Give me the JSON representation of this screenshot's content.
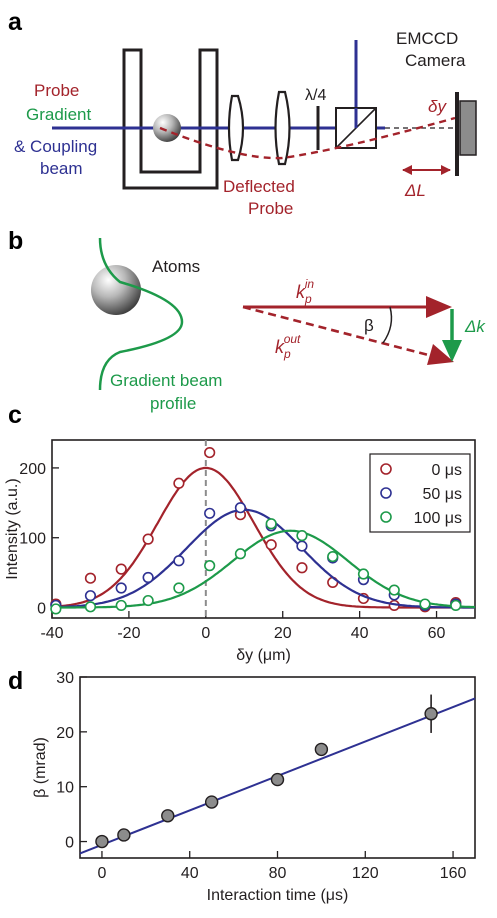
{
  "panels": {
    "a": {
      "letter": "a",
      "probe_label": "Probe",
      "gradient_label": "Gradient",
      "coupling_label": "& Coupling",
      "beam_label": "beam",
      "deflected_label_1": "Deflected",
      "deflected_label_2": "Probe",
      "waveplate_label": "λ/4",
      "camera_label_1": "EMCCD",
      "camera_label_2": "Camera",
      "dy_label": "δy",
      "dl_label": "ΔL"
    },
    "b": {
      "letter": "b",
      "atoms_label": "Atoms",
      "profile_label_1": "Gradient beam",
      "profile_label_2": "profile",
      "kin_label": "k",
      "kin_sub": "p",
      "kin_sup": "in",
      "kout_label": "k",
      "kout_sub": "p",
      "kout_sup": "out",
      "beta_label": "β",
      "dk_label": "Δk"
    },
    "c": {
      "letter": "c"
    },
    "d": {
      "letter": "d"
    }
  },
  "colors": {
    "red": "#a3232b",
    "blue": "#2e3192",
    "green": "#1d9a4a",
    "dark": "#231f20",
    "marker_gray": "#8c8c8c"
  },
  "chart_data": [
    {
      "type": "scatter",
      "panel": "c",
      "xlabel": "δy (μm)",
      "ylabel": "Intensity (a.u.)",
      "xlim": [
        -40,
        70
      ],
      "ylim": [
        -15,
        240
      ],
      "xticks": [
        -40,
        -20,
        0,
        20,
        40,
        60
      ],
      "yticks": [
        0,
        100,
        200
      ],
      "xtick_labels": [
        "-40",
        "-20",
        "0",
        "20",
        "40",
        "60"
      ],
      "ytick_labels": [
        "0",
        "100",
        "200"
      ],
      "legend_position": "top-right",
      "marker_line": 0,
      "series": [
        {
          "name": "0 μs",
          "color": "#a3232b",
          "points": [
            [
              -39,
              5
            ],
            [
              -30,
              42
            ],
            [
              -22,
              55
            ],
            [
              -15,
              98
            ],
            [
              -7,
              178
            ],
            [
              1,
              222
            ],
            [
              9,
              133
            ],
            [
              17,
              90
            ],
            [
              25,
              57
            ],
            [
              33,
              36
            ],
            [
              41,
              13
            ],
            [
              49,
              3
            ],
            [
              57,
              1
            ],
            [
              65,
              7
            ]
          ],
          "fit": {
            "amplitude": 200,
            "center": 0,
            "sigma": 12.5
          }
        },
        {
          "name": "50 μs",
          "color": "#2e3192",
          "points": [
            [
              -39,
              3
            ],
            [
              -30,
              17
            ],
            [
              -22,
              28
            ],
            [
              -15,
              43
            ],
            [
              -7,
              67
            ],
            [
              1,
              135
            ],
            [
              9,
              143
            ],
            [
              17,
              117
            ],
            [
              25,
              88
            ],
            [
              33,
              71
            ],
            [
              41,
              40
            ],
            [
              49,
              18
            ],
            [
              57,
              3
            ],
            [
              65,
              5
            ]
          ],
          "fit": {
            "amplitude": 140,
            "center": 10,
            "sigma": 15
          }
        },
        {
          "name": "100 μs",
          "color": "#1d9a4a",
          "points": [
            [
              -39,
              -2
            ],
            [
              -30,
              1
            ],
            [
              -22,
              3
            ],
            [
              -15,
              10
            ],
            [
              -7,
              28
            ],
            [
              1,
              60
            ],
            [
              9,
              77
            ],
            [
              17,
              120
            ],
            [
              25,
              103
            ],
            [
              33,
              73
            ],
            [
              41,
              48
            ],
            [
              49,
              25
            ],
            [
              57,
              5
            ],
            [
              65,
              3
            ]
          ],
          "fit": {
            "amplitude": 110,
            "center": 22,
            "sigma": 15
          }
        }
      ]
    },
    {
      "type": "scatter",
      "panel": "d",
      "xlabel": "Interaction time (μs)",
      "ylabel": "β (mrad)",
      "xlim": [
        -10,
        170
      ],
      "ylim": [
        -3,
        30
      ],
      "xticks": [
        0,
        40,
        80,
        120,
        160
      ],
      "yticks": [
        0,
        10,
        20,
        30
      ],
      "xtick_labels": [
        "0",
        "40",
        "80",
        "120",
        "160"
      ],
      "ytick_labels": [
        "0",
        "10",
        "20",
        "30"
      ],
      "points": [
        [
          0,
          0
        ],
        [
          10,
          1.2
        ],
        [
          30,
          4.7
        ],
        [
          50,
          7.2
        ],
        [
          80,
          11.3
        ],
        [
          100,
          16.8
        ],
        [
          150,
          23.3
        ]
      ],
      "errors": [
        0,
        0,
        0,
        0,
        0,
        0,
        3.5
      ],
      "fit": {
        "slope": 0.157,
        "intercept": -0.6
      },
      "fit_color": "#2e3192"
    }
  ]
}
